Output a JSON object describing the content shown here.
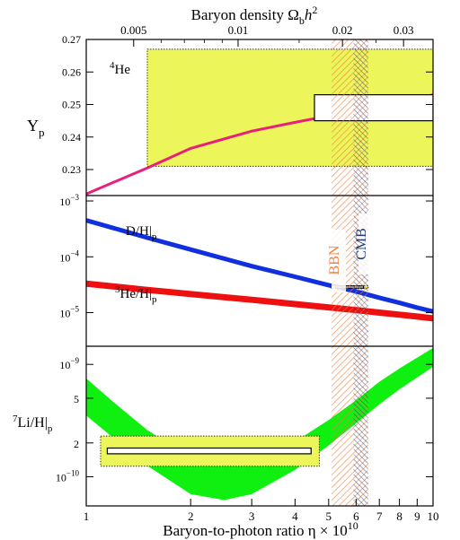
{
  "chart_data": {
    "type": "line",
    "x_axis": {
      "label": "Baryon-to-photon ratio η × 10",
      "label_exp": "10",
      "scale": "log",
      "range": [
        1,
        10
      ],
      "ticks": [
        1,
        2,
        3,
        4,
        5,
        6,
        7,
        8,
        9,
        10
      ],
      "tick_labels": [
        "1",
        "2",
        "3",
        "4",
        "5",
        "6",
        "7",
        "8",
        "9",
        "10"
      ]
    },
    "top_axis": {
      "label_pre": "Baryon density Ω",
      "label_sub": "b",
      "label_h": "h",
      "label_sup": "2",
      "ticks": [
        0.005,
        0.01,
        0.02,
        0.03
      ],
      "tick_labels": [
        "0.005",
        "0.01",
        "0.02",
        "0.03"
      ],
      "eta_per_unit": 274
    },
    "bands": {
      "bbn": {
        "label": "BBN",
        "eta_range": [
          5.1,
          6.5
        ],
        "color": "#f08040"
      },
      "cmb": {
        "label": "CMB",
        "eta_range": [
          5.9,
          6.5
        ],
        "color": "#1f3a78"
      }
    },
    "panels": [
      {
        "name": "He4",
        "ylabel_main": "Y",
        "ylabel_sub": "p",
        "scale": "linear",
        "ylim": [
          0.222,
          0.27
        ],
        "ticks": [
          0.23,
          0.24,
          0.25,
          0.26,
          0.27
        ],
        "tick_labels": [
          "0.23",
          "0.24",
          "0.25",
          "0.26",
          "0.27"
        ],
        "annotation_sup": "4",
        "annotation_main": "He",
        "series": [
          {
            "color": "#e8207a",
            "width_band": false,
            "x": [
              1,
              1.5,
              2,
              3,
              4,
              5,
              6,
              7,
              8,
              9,
              10
            ],
            "y": [
              0.2225,
              0.2305,
              0.2365,
              0.2418,
              0.2445,
              0.2465,
              0.248,
              0.2495,
              0.2505,
              0.2517,
              0.253
            ]
          }
        ],
        "obs_box": {
          "x": [
            1.5,
            10
          ],
          "y": [
            0.231,
            0.267
          ]
        },
        "inner_box": {
          "x": [
            4.55,
            10
          ],
          "y": [
            0.245,
            0.253
          ]
        }
      },
      {
        "name": "D_He3",
        "scale": "log",
        "ylim": [
          2.5e-06,
          0.00125
        ],
        "ticks": [
          1e-05,
          0.0001,
          0.001
        ],
        "tick_mant": [
          "10",
          "10",
          "10"
        ],
        "tick_exp": [
          "−5",
          "−4",
          "−3"
        ],
        "series": [
          {
            "label_main": "D/H|",
            "label_sub": "p",
            "color": "#1030e0",
            "x": [
              1,
              1.5,
              2,
              3,
              4,
              5,
              6,
              7,
              8,
              9,
              10
            ],
            "y": [
              0.00045,
              0.00022,
              0.000135,
              6.8e-05,
              4.4e-05,
              3.1e-05,
              2.4e-05,
              1.85e-05,
              1.5e-05,
              1.23e-05,
              1.05e-05
            ]
          },
          {
            "label_sup": "3",
            "label_main": "He/H|",
            "label_sub": "p",
            "color": "#ee1010",
            "x": [
              1,
              1.5,
              2,
              3,
              4,
              5,
              6,
              7,
              8,
              9,
              10
            ],
            "y": [
              3.3e-05,
              2.55e-05,
              2.15e-05,
              1.7e-05,
              1.42e-05,
              1.24e-05,
              1.11e-05,
              1e-05,
              9.2e-06,
              8.5e-06,
              7.9e-06
            ]
          }
        ],
        "obs_box": {
          "x": [
            5.1,
            6.5
          ],
          "y": [
            2.7e-05,
            3.05e-05
          ]
        },
        "inner_box": {
          "x": [
            5.25,
            6.3
          ],
          "y": [
            2.75e-05,
            3e-05
          ]
        }
      },
      {
        "name": "Li7",
        "ylabel_sup": "7",
        "ylabel_main": "Li/H|",
        "ylabel_sub": "p",
        "scale": "log",
        "ylim": [
          5.5e-11,
          1.45e-09
        ],
        "ticks": [
          1e-10,
          2e-10,
          5e-10,
          1e-09
        ],
        "tick_labels": [
          "2",
          "5"
        ],
        "tick_mant": [
          "10",
          "10"
        ],
        "tick_exp": [
          "−10",
          "−9"
        ],
        "series": [
          {
            "color": "#10f010",
            "x": [
              1,
              1.2,
              1.5,
              2,
              2.5,
              3,
              4,
              5,
              6,
              7,
              8,
              10
            ],
            "y_low": [
              3.5e-10,
              2.2e-10,
              1.25e-10,
              7e-11,
              6.2e-11,
              7e-11,
              1.15e-10,
              1.9e-10,
              3e-10,
              4.4e-10,
              6e-10,
              9.5e-10
            ],
            "y_high": [
              7.5e-10,
              4.6e-10,
              2.6e-10,
              1.5e-10,
              1.25e-10,
              1.35e-10,
              2.05e-10,
              3.2e-10,
              4.8e-10,
              7e-10,
              9.2e-10,
              1.4e-09
            ]
          }
        ],
        "obs_box": {
          "x": [
            1.1,
            4.7
          ],
          "y": [
            1.24e-10,
            2.3e-10
          ]
        },
        "inner_box": {
          "x": [
            1.15,
            4.45
          ],
          "y": [
            1.6e-10,
            1.8e-10
          ]
        }
      }
    ]
  }
}
